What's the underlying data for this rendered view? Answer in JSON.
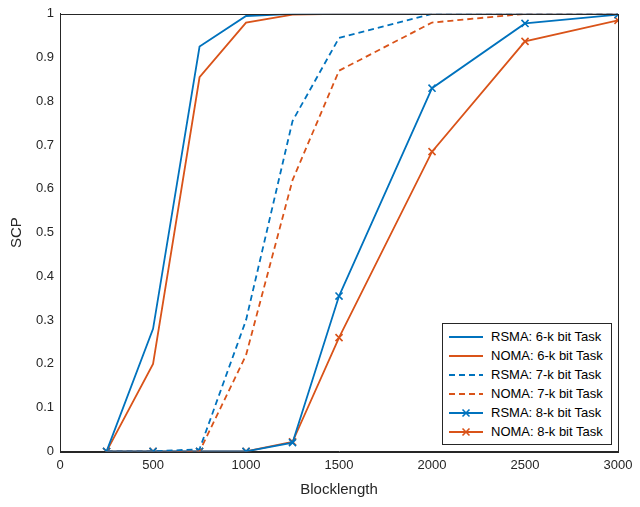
{
  "chart_data": {
    "type": "line",
    "xlabel": "Blocklength",
    "ylabel": "SCP",
    "x": [
      250,
      500,
      750,
      1000,
      1250,
      1500,
      2000,
      2500,
      3000
    ],
    "series": [
      {
        "name": "RSMA: 6-k bit Task",
        "color": "#0072bd",
        "line_style": "solid",
        "marker": "none",
        "values": [
          0,
          0.28,
          0.925,
          0.995,
          1,
          1,
          1,
          1,
          1
        ]
      },
      {
        "name": "NOMA: 6-k bit Task",
        "color": "#d95319",
        "line_style": "solid",
        "marker": "none",
        "values": [
          0,
          0.2,
          0.855,
          0.98,
          0.998,
          1,
          1,
          1,
          1
        ]
      },
      {
        "name": "RSMA: 7-k bit Task",
        "color": "#0072bd",
        "line_style": "dashed",
        "marker": "none",
        "values": [
          0,
          0,
          0.005,
          0.3,
          0.755,
          0.945,
          1,
          1,
          1
        ]
      },
      {
        "name": "NOMA: 7-k bit Task",
        "color": "#d95319",
        "line_style": "dashed",
        "marker": "none",
        "values": [
          0,
          0,
          0,
          0.22,
          0.62,
          0.87,
          0.98,
          1,
          1
        ]
      },
      {
        "name": "RSMA: 8-k bit Task",
        "color": "#0072bd",
        "line_style": "solid",
        "marker": "x",
        "values": [
          0,
          0,
          0,
          0,
          0.02,
          0.355,
          0.83,
          0.978,
          0.998
        ]
      },
      {
        "name": "NOMA: 8-k bit Task",
        "color": "#d95319",
        "line_style": "solid",
        "marker": "x",
        "values": [
          0,
          0,
          0,
          0,
          0.022,
          0.26,
          0.685,
          0.937,
          0.985
        ]
      }
    ],
    "xlim": [
      0,
      3000
    ],
    "xticks": [
      0,
      500,
      1000,
      1500,
      2000,
      2500,
      3000
    ],
    "ylim": [
      0,
      1
    ],
    "yticks": [
      0,
      0.1,
      0.2,
      0.3,
      0.4,
      0.5,
      0.6,
      0.7,
      0.8,
      0.9,
      1
    ],
    "grid": false,
    "legend": "bottom right"
  }
}
